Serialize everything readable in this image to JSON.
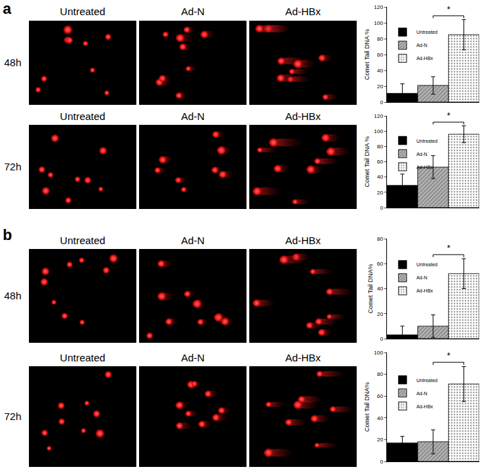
{
  "figure": {
    "panels": [
      {
        "label": "a",
        "rows": [
          {
            "label": "48h",
            "image_titles": [
              "Untreated",
              "Ad-N",
              "Ad-HBx"
            ]
          },
          {
            "label": "72h",
            "image_titles": [
              "Untreated",
              "Ad-N",
              "Ad-HBx"
            ]
          }
        ]
      },
      {
        "label": "b",
        "rows": [
          {
            "label": "48h",
            "image_titles": [
              "Untreated",
              "Ad-N",
              "Ad-HBx"
            ]
          },
          {
            "label": "72h",
            "image_titles": [
              "Untreated",
              "Ad-N",
              "Ad-HBx"
            ]
          }
        ]
      }
    ]
  },
  "chart_data": [
    {
      "type": "bar",
      "ylabel": "Comet Tail DNA %",
      "ylim": [
        0,
        120
      ],
      "yticks": [
        0,
        20,
        40,
        60,
        80,
        100,
        120
      ],
      "tick_labels": "y",
      "legend": "upper left",
      "categories": [
        null
      ],
      "series": [
        {
          "name": "Untreated",
          "color": "#000000",
          "marker": "solid",
          "values": [
            11
          ],
          "errors": [
            12
          ]
        },
        {
          "name": "Ad-N",
          "color": "#b3b3b3",
          "marker": "hatch",
          "values": [
            21
          ],
          "errors": [
            11
          ]
        },
        {
          "name": "Ad-HBx",
          "color": "#ffffff",
          "marker": "dots",
          "values": [
            85
          ],
          "errors": [
            19
          ]
        }
      ],
      "annotations": [
        {
          "text": "*",
          "between": [
            "Ad-N",
            "Ad-HBx"
          ]
        }
      ]
    },
    {
      "type": "bar",
      "ylabel": "Comet Tail DNA %",
      "ylim": [
        0,
        120
      ],
      "yticks": [
        0,
        20,
        40,
        60,
        80,
        100,
        120
      ],
      "tick_labels": "y",
      "legend": "upper left",
      "categories": [
        null
      ],
      "series": [
        {
          "name": "Untreated",
          "color": "#000000",
          "marker": "solid",
          "values": [
            29
          ],
          "errors": [
            15
          ]
        },
        {
          "name": "Ad-N",
          "color": "#b3b3b3",
          "marker": "hatch",
          "values": [
            53
          ],
          "errors": [
            15
          ]
        },
        {
          "name": "Ad-HBx",
          "color": "#ffffff",
          "marker": "dots",
          "values": [
            96
          ],
          "errors": [
            11
          ]
        }
      ],
      "annotations": [
        {
          "text": "*",
          "between": [
            "Ad-N",
            "Ad-HBx"
          ]
        }
      ]
    },
    {
      "type": "bar",
      "ylabel": "Comet Tail DNA%",
      "ylim": [
        0,
        80
      ],
      "yticks": [
        0,
        20,
        40,
        60,
        80
      ],
      "tick_labels": "y",
      "legend": "upper left",
      "categories": [
        null
      ],
      "series": [
        {
          "name": "Untreated",
          "color": "#000000",
          "marker": "solid",
          "values": [
            3
          ],
          "errors": [
            7
          ]
        },
        {
          "name": "Ad-N",
          "color": "#b3b3b3",
          "marker": "hatch",
          "values": [
            10
          ],
          "errors": [
            9
          ]
        },
        {
          "name": "Ad-HBx",
          "color": "#ffffff",
          "marker": "dots",
          "values": [
            52
          ],
          "errors": [
            12
          ]
        }
      ],
      "annotations": [
        {
          "text": "*",
          "between": [
            "Ad-N",
            "Ad-HBx"
          ]
        }
      ]
    },
    {
      "type": "bar",
      "ylabel": "Comet Tail DNA%",
      "ylim": [
        0,
        100
      ],
      "yticks": [
        0,
        20,
        40,
        60,
        80,
        100
      ],
      "tick_labels": "y",
      "legend": "upper left",
      "categories": [
        null
      ],
      "series": [
        {
          "name": "Untreated",
          "color": "#000000",
          "marker": "solid",
          "values": [
            17
          ],
          "errors": [
            6
          ]
        },
        {
          "name": "Ad-N",
          "color": "#b3b3b3",
          "marker": "hatch",
          "values": [
            18
          ],
          "errors": [
            11
          ]
        },
        {
          "name": "Ad-HBx",
          "color": "#ffffff",
          "marker": "dots",
          "values": [
            71
          ],
          "errors": [
            16
          ]
        }
      ],
      "annotations": [
        {
          "text": "*",
          "between": [
            "Ad-N",
            "Ad-HBx"
          ]
        }
      ]
    }
  ]
}
